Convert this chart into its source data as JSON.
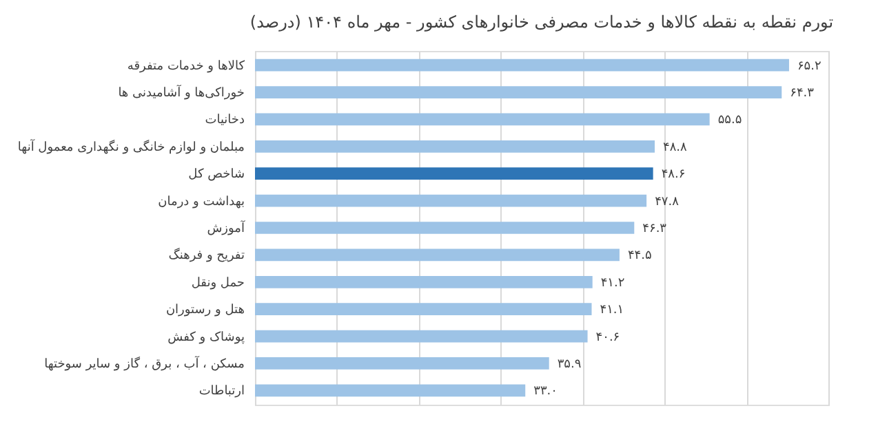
{
  "chart_data": {
    "type": "bar",
    "orientation": "horizontal",
    "title": "تورم نقطه به نقطه کالاها و خدمات مصرفی خانوارهای کشور - مهر ماه ۱۴۰۴ (درصد)",
    "categories": [
      "کالاها و خدمات متفرقه",
      "خوراکی‌ها و آشامیدنی ها",
      "دخانیات",
      "مبلمان و لوازم خانگی و نگهداری معمول آنها",
      "شاخص کل",
      "بهداشت و درمان",
      "آموزش",
      "تفریح و فرهنگ",
      "حمل ونقل",
      "هتل و رستوران",
      "پوشاک و کفش",
      "مسکن ، آب ، برق ، گاز و سایر سوختها",
      "ارتباطات"
    ],
    "values": [
      65.2,
      64.3,
      55.5,
      48.8,
      48.6,
      47.8,
      46.3,
      44.5,
      41.2,
      41.1,
      40.6,
      35.9,
      33.0
    ],
    "value_labels": [
      "۶۵.۲",
      "۶۴.۳",
      "۵۵.۵",
      "۴۸.۸",
      "۴۸.۶",
      "۴۷.۸",
      "۴۶.۳",
      "۴۴.۵",
      "۴۱.۲",
      "۴۱.۱",
      "۴۰.۶",
      "۳۵.۹",
      "۳۳.۰"
    ],
    "colors": [
      "#9dc3e6",
      "#9dc3e6",
      "#9dc3e6",
      "#9dc3e6",
      "#2e75b6",
      "#9dc3e6",
      "#9dc3e6",
      "#9dc3e6",
      "#9dc3e6",
      "#9dc3e6",
      "#9dc3e6",
      "#9dc3e6",
      "#9dc3e6"
    ],
    "xlim": [
      0,
      70
    ],
    "xticks": [
      {
        "value": 0,
        "label": null
      },
      {
        "value": 10,
        "label": null
      },
      {
        "value": 20,
        "label": null
      },
      {
        "value": 30,
        "label": null
      },
      {
        "value": 40,
        "label": null
      },
      {
        "value": 50,
        "label": null
      },
      {
        "value": 60,
        "label": null
      },
      {
        "value": 70,
        "label": null
      }
    ],
    "grid": "x",
    "tick_labels": "y"
  }
}
